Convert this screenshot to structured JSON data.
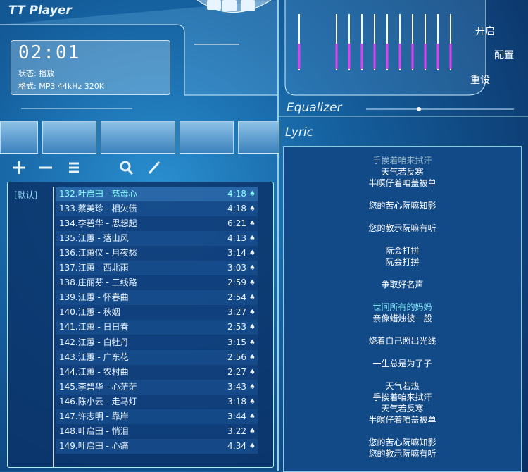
{
  "app": {
    "title": "TT Player"
  },
  "display": {
    "time": "02:01",
    "status": "状态: 播放",
    "format": "格式: MP3 44kHz 320K"
  },
  "equalizer": {
    "title": "Equalizer",
    "buttons": [
      "开启",
      "配置",
      "重设"
    ]
  },
  "playlist": {
    "group": "[默认]",
    "tracks": [
      {
        "title": "132.叶启田 - 慈母心",
        "duration": "4:18"
      },
      {
        "title": "133.蔡美珍 - 相欠债",
        "duration": "4:18"
      },
      {
        "title": "134.李碧华 - 思想起",
        "duration": "6:21"
      },
      {
        "title": "135.江蕙 - 落山风",
        "duration": "4:13"
      },
      {
        "title": "136.江蕙仪 - 月夜愁",
        "duration": "3:14"
      },
      {
        "title": "137.江蕙 - 西北雨",
        "duration": "3:03"
      },
      {
        "title": "138.庄丽芬 - 三线路",
        "duration": "2:59"
      },
      {
        "title": "139.江蕙 - 怀春曲",
        "duration": "2:54"
      },
      {
        "title": "140.江蕙 - 秋姻",
        "duration": "3:27"
      },
      {
        "title": "141.江蕙 - 日日春",
        "duration": "2:53"
      },
      {
        "title": "142.江蕙 - 白牡丹",
        "duration": "3:15"
      },
      {
        "title": "143.江蕙 - 广东花",
        "duration": "2:56"
      },
      {
        "title": "144.江蕙 - 农村曲",
        "duration": "2:27"
      },
      {
        "title": "145.李碧华 - 心茫茫",
        "duration": "3:43"
      },
      {
        "title": "146.陈小云 - 走马灯",
        "duration": "3:18"
      },
      {
        "title": "147.许志明 - 靠岸",
        "duration": "3:44"
      },
      {
        "title": "148.叶启田 - 悄泪",
        "duration": "3:22"
      },
      {
        "title": "149.叶启田 - 心痛",
        "duration": "4:34"
      }
    ]
  },
  "lyric": {
    "title": "Lyric",
    "stanzas": [
      [
        "手挨着咱来拭汗",
        "天气若反寒",
        "半暝仔着咱盖被单"
      ],
      [
        "您的苦心阮嘛知影"
      ],
      [
        "您的教示阮嘛有听"
      ],
      [
        "阮会打拼",
        "阮会打拼"
      ],
      [
        "争取好名声"
      ],
      [
        "世间所有的妈妈",
        "亲像蜡烛彼一般"
      ],
      [
        "烧着自己照出光线"
      ],
      [
        "一生总是为了子"
      ],
      [
        "天气若热",
        "手挨着咱来拭汗",
        "天气若反寒",
        "半暝仔着咱盖被单"
      ],
      [
        "您的苦心阮嘛知影",
        "您的教示阮嘛有听"
      ]
    ]
  }
}
